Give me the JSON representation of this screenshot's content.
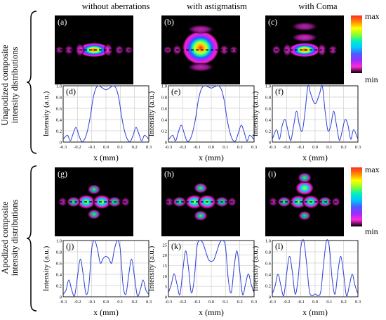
{
  "column_headers": [
    "without aberrations",
    "with astigmatism",
    "with Coma"
  ],
  "row_labels": {
    "top": [
      "Unapodized composite",
      "intensity distributions"
    ],
    "bottom": [
      "Apodized composite",
      "intensity distributions"
    ]
  },
  "colorbar": {
    "max_label": "max",
    "min_label": "min",
    "colors": [
      "#ff2a2a",
      "#ff8a00",
      "#ffff00",
      "#8cff2a",
      "#00f0c0",
      "#00c8ff",
      "#4a5cff",
      "#9a2cff",
      "#ff2ad8",
      "#000000"
    ]
  },
  "intensity_panels": [
    {
      "tag": "(a)",
      "lobes": [
        [
          0,
          0,
          1.0,
          "main"
        ],
        [
          -0.18,
          0,
          0.55,
          "side"
        ],
        [
          0.18,
          0,
          0.55,
          "side"
        ],
        [
          -0.32,
          0,
          0.3,
          "side"
        ],
        [
          0.32,
          0,
          0.3,
          "side"
        ],
        [
          -0.44,
          0,
          0.18,
          "side"
        ],
        [
          0.44,
          0,
          0.18,
          "side"
        ]
      ]
    },
    {
      "tag": "(b)",
      "lobes": [
        [
          0,
          -0.03,
          1.0,
          "big"
        ],
        [
          0,
          0.25,
          0.35,
          "ring"
        ],
        [
          0,
          -0.3,
          0.35,
          "ring"
        ],
        [
          -0.3,
          0,
          0.35,
          "side"
        ],
        [
          0.3,
          0,
          0.35,
          "side"
        ],
        [
          -0.42,
          0,
          0.2,
          "side"
        ],
        [
          0.42,
          0,
          0.2,
          "side"
        ]
      ]
    },
    {
      "tag": "(c)",
      "lobes": [
        [
          0,
          0,
          1.0,
          "main"
        ],
        [
          0,
          -0.18,
          0.5,
          "ring"
        ],
        [
          0,
          -0.34,
          0.25,
          "ring"
        ],
        [
          -0.22,
          0,
          0.5,
          "side"
        ],
        [
          0.22,
          0,
          0.5,
          "side"
        ],
        [
          -0.36,
          0,
          0.3,
          "side"
        ],
        [
          0.36,
          0,
          0.3,
          "side"
        ]
      ]
    },
    {
      "tag": "(g)",
      "lobes": [
        [
          -0.1,
          0,
          1.0,
          "dot"
        ],
        [
          0.1,
          0,
          1.0,
          "dot"
        ],
        [
          0,
          0.18,
          0.55,
          "dot"
        ],
        [
          0,
          -0.18,
          0.55,
          "dot"
        ],
        [
          -0.26,
          0,
          0.6,
          "dot"
        ],
        [
          0.26,
          0,
          0.6,
          "dot"
        ],
        [
          -0.4,
          0,
          0.3,
          "side"
        ],
        [
          0.4,
          0,
          0.3,
          "side"
        ]
      ]
    },
    {
      "tag": "(h)",
      "lobes": [
        [
          -0.08,
          0,
          1.0,
          "dot"
        ],
        [
          0.08,
          0,
          1.0,
          "dot"
        ],
        [
          0,
          0.2,
          0.6,
          "dot"
        ],
        [
          0,
          -0.2,
          0.6,
          "dot"
        ],
        [
          -0.27,
          0,
          0.6,
          "dot"
        ],
        [
          0.27,
          0,
          0.6,
          "dot"
        ],
        [
          -0.4,
          0,
          0.3,
          "side"
        ],
        [
          0.4,
          0,
          0.3,
          "side"
        ]
      ]
    },
    {
      "tag": "(i)",
      "lobes": [
        [
          -0.08,
          0,
          0.9,
          "dot"
        ],
        [
          0.08,
          0,
          0.9,
          "dot"
        ],
        [
          0,
          -0.2,
          1.0,
          "dot"
        ],
        [
          0,
          -0.35,
          0.6,
          "dot"
        ],
        [
          0,
          0.2,
          0.5,
          "dot"
        ],
        [
          -0.26,
          0,
          0.6,
          "dot"
        ],
        [
          0.26,
          0,
          0.6,
          "dot"
        ],
        [
          -0.4,
          0,
          0.3,
          "side"
        ],
        [
          0.4,
          0,
          0.3,
          "side"
        ]
      ]
    }
  ],
  "chart_data": [
    {
      "type": "line",
      "tag": "(d)",
      "xlabel": "x (mm)",
      "ylabel": "Intensity (a.u.)",
      "xlim": [
        -0.3,
        0.3
      ],
      "ylim": [
        0,
        1
      ],
      "x_ticks": [
        "-0.3",
        "-0.2",
        "-0.1",
        "0.0",
        "0.1",
        "0.2",
        "0.3"
      ],
      "y_ticks": [
        "0",
        "0.2",
        "0.4",
        "0.6",
        "0.8",
        "1.0"
      ],
      "x": [
        -0.3,
        -0.27,
        -0.25,
        -0.23,
        -0.21,
        -0.19,
        -0.17,
        -0.15,
        -0.13,
        -0.11,
        -0.09,
        -0.07,
        -0.05,
        -0.03,
        0,
        0.03,
        0.05,
        0.07,
        0.09,
        0.11,
        0.13,
        0.15,
        0.17,
        0.19,
        0.21,
        0.23,
        0.25,
        0.27,
        0.3
      ],
      "y": [
        0.05,
        0.12,
        0.02,
        0.15,
        0.26,
        0.12,
        0.01,
        0.05,
        0.2,
        0.45,
        0.78,
        0.96,
        1.0,
        0.97,
        0.93,
        0.97,
        1.0,
        0.96,
        0.78,
        0.45,
        0.2,
        0.05,
        0.01,
        0.12,
        0.26,
        0.15,
        0.02,
        0.12,
        0.05
      ]
    },
    {
      "type": "line",
      "tag": "(e)",
      "xlabel": "x (mm)",
      "ylabel": "Intensity (a.u.)",
      "xlim": [
        -0.3,
        0.3
      ],
      "ylim": [
        0,
        1
      ],
      "x_ticks": [
        "-0.3",
        "-0.2",
        "-0.1",
        "0.0",
        "0.1",
        "0.2",
        "0.3"
      ],
      "y_ticks": [
        "0",
        "0.2",
        "0.4",
        "0.6",
        "0.8",
        "1.0"
      ],
      "x": [
        -0.3,
        -0.27,
        -0.25,
        -0.23,
        -0.21,
        -0.19,
        -0.17,
        -0.15,
        -0.13,
        -0.11,
        -0.09,
        -0.07,
        -0.05,
        -0.03,
        0,
        0.03,
        0.05,
        0.07,
        0.09,
        0.11,
        0.13,
        0.15,
        0.17,
        0.19,
        0.21,
        0.23,
        0.25,
        0.27,
        0.3
      ],
      "y": [
        0.04,
        0.12,
        0.02,
        0.18,
        0.3,
        0.16,
        0.02,
        0.04,
        0.18,
        0.42,
        0.75,
        0.94,
        1.0,
        0.99,
        0.96,
        0.99,
        1.0,
        0.94,
        0.75,
        0.42,
        0.18,
        0.04,
        0.02,
        0.16,
        0.3,
        0.18,
        0.02,
        0.12,
        0.04
      ]
    },
    {
      "type": "line",
      "tag": "(f)",
      "xlabel": "x (mm)",
      "ylabel": "Intensity (a.u.)",
      "xlim": [
        -0.3,
        0.3
      ],
      "ylim": [
        0,
        1
      ],
      "x_ticks": [
        "-0.3",
        "-0.2",
        "-0.1",
        "0.0",
        "0.1",
        "0.2",
        "0.3"
      ],
      "y_ticks": [
        "0",
        "0.2",
        "0.4",
        "0.6",
        "0.8",
        "1.0"
      ],
      "x": [
        -0.3,
        -0.27,
        -0.25,
        -0.23,
        -0.21,
        -0.19,
        -0.17,
        -0.15,
        -0.13,
        -0.11,
        -0.09,
        -0.07,
        -0.05,
        -0.03,
        0,
        0.03,
        0.05,
        0.07,
        0.09,
        0.11,
        0.13,
        0.15,
        0.17,
        0.19,
        0.21,
        0.23,
        0.25,
        0.27,
        0.3
      ],
      "y": [
        0.05,
        0.22,
        0.05,
        0.3,
        0.4,
        0.2,
        0.03,
        0.3,
        0.55,
        0.3,
        0.2,
        0.55,
        1.0,
        0.85,
        0.68,
        0.85,
        1.0,
        0.55,
        0.2,
        0.3,
        0.55,
        0.3,
        0.03,
        0.2,
        0.4,
        0.3,
        0.05,
        0.22,
        0.05
      ]
    },
    {
      "type": "line",
      "tag": "(j)",
      "xlabel": "x (mm)",
      "ylabel": "Intensity (a.u.)",
      "xlim": [
        -0.3,
        0.3
      ],
      "ylim": [
        0,
        1
      ],
      "x_ticks": [
        "-0.3",
        "-0.2",
        "-0.1",
        "0.0",
        "0.1",
        "0.2",
        "0.3"
      ],
      "y_ticks": [
        "0",
        "0.2",
        "0.4",
        "0.6",
        "0.8",
        "1.0"
      ],
      "x": [
        -0.3,
        -0.28,
        -0.26,
        -0.24,
        -0.22,
        -0.2,
        -0.18,
        -0.16,
        -0.14,
        -0.12,
        -0.1,
        -0.08,
        -0.06,
        -0.04,
        -0.02,
        0,
        0.02,
        0.04,
        0.06,
        0.08,
        0.1,
        0.12,
        0.14,
        0.16,
        0.18,
        0.2,
        0.22,
        0.24,
        0.26,
        0.28,
        0.3
      ],
      "y": [
        0.04,
        0.12,
        0.3,
        0.12,
        0.02,
        0.35,
        0.67,
        0.4,
        0.05,
        0.2,
        0.85,
        1.0,
        0.85,
        0.6,
        0.68,
        0.72,
        0.68,
        0.6,
        0.85,
        1.0,
        0.85,
        0.2,
        0.05,
        0.4,
        0.67,
        0.35,
        0.02,
        0.12,
        0.3,
        0.12,
        0.04
      ]
    },
    {
      "type": "line",
      "tag": "(k)",
      "xlabel": "x (mm)",
      "ylabel": "Intensity (a.u.)",
      "xlim": [
        -0.3,
        0.3
      ],
      "ylim": [
        0,
        27
      ],
      "x_ticks": [
        "-0.3",
        "-0.2",
        "-0.1",
        "0.0",
        "0.1",
        "0.2",
        "0.3"
      ],
      "y_ticks": [
        "0",
        "5",
        "10",
        "15",
        "20",
        "25"
      ],
      "x": [
        -0.3,
        -0.28,
        -0.26,
        -0.24,
        -0.22,
        -0.2,
        -0.18,
        -0.16,
        -0.14,
        -0.12,
        -0.1,
        -0.08,
        -0.06,
        -0.04,
        -0.02,
        0,
        0.02,
        0.04,
        0.06,
        0.08,
        0.1,
        0.12,
        0.14,
        0.16,
        0.18,
        0.2,
        0.22,
        0.24,
        0.26,
        0.28,
        0.3
      ],
      "y": [
        2,
        6,
        11,
        6,
        1,
        12,
        22,
        14,
        2,
        8,
        24,
        27,
        26,
        22,
        18,
        17,
        18,
        22,
        26,
        27,
        24,
        8,
        2,
        14,
        22,
        12,
        1,
        6,
        11,
        6,
        2
      ]
    },
    {
      "type": "line",
      "tag": "(l)",
      "xlabel": "x (mm)",
      "ylabel": "Intensity (a.u.)",
      "xlim": [
        -0.3,
        0.3
      ],
      "ylim": [
        0,
        1
      ],
      "x_ticks": [
        "-0.3",
        "-0.2",
        "-0.1",
        "0.0",
        "0.1",
        "0.2",
        "0.3"
      ],
      "y_ticks": [
        "0",
        "0.2",
        "0.4",
        "0.6",
        "0.8",
        "1.0"
      ],
      "x": [
        -0.3,
        -0.28,
        -0.26,
        -0.24,
        -0.22,
        -0.2,
        -0.18,
        -0.16,
        -0.14,
        -0.12,
        -0.1,
        -0.08,
        -0.06,
        -0.04,
        -0.02,
        0,
        0.02,
        0.04,
        0.06,
        0.08,
        0.1,
        0.12,
        0.14,
        0.16,
        0.18,
        0.2,
        0.22,
        0.24,
        0.26,
        0.28,
        0.3
      ],
      "y": [
        0.05,
        0.2,
        0.4,
        0.2,
        0.02,
        0.4,
        0.72,
        0.45,
        0.05,
        0.3,
        0.88,
        1.0,
        0.6,
        0.1,
        0.02,
        0.05,
        0.02,
        0.1,
        0.6,
        1.0,
        0.88,
        0.3,
        0.05,
        0.45,
        0.72,
        0.4,
        0.02,
        0.2,
        0.4,
        0.2,
        0.05
      ]
    }
  ]
}
